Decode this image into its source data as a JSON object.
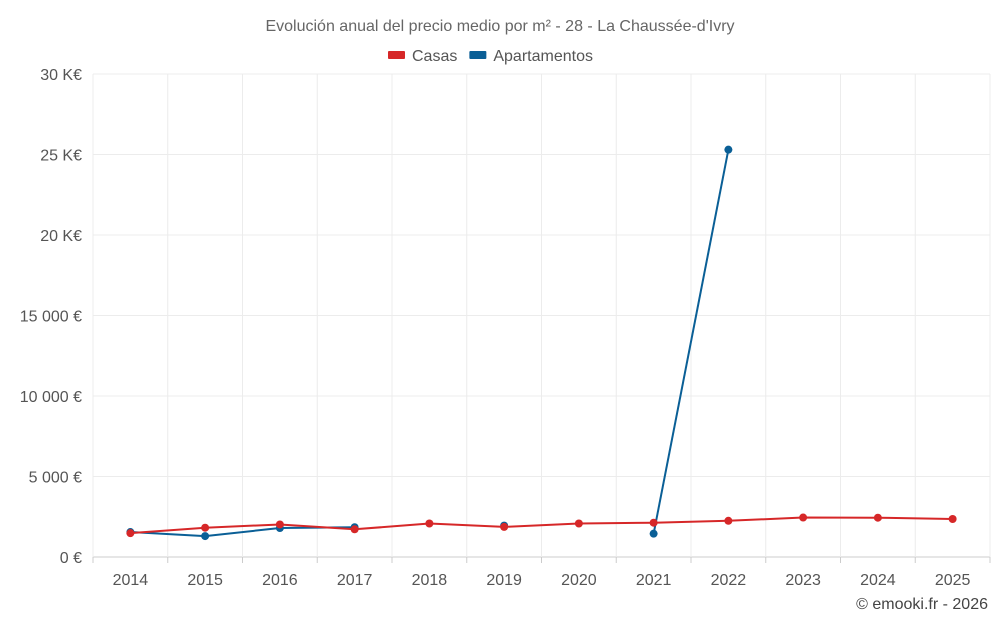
{
  "chart_data": {
    "type": "line",
    "title": "Evolución anual del precio medio por m² - 28 - La Chaussée-d'Ivry",
    "categories": [
      "2014",
      "2015",
      "2016",
      "2017",
      "2018",
      "2019",
      "2020",
      "2021",
      "2022",
      "2023",
      "2024",
      "2025"
    ],
    "ylim": [
      0,
      30000
    ],
    "yticks": [
      {
        "value": 0,
        "label": "0 €"
      },
      {
        "value": 5000,
        "label": "5 000 €"
      },
      {
        "value": 10000,
        "label": "10 000 €"
      },
      {
        "value": 15000,
        "label": "15 000 €"
      },
      {
        "value": 20000,
        "label": "20 K€"
      },
      {
        "value": 25000,
        "label": "25 K€"
      },
      {
        "value": 30000,
        "label": "30 K€"
      }
    ],
    "grid": true,
    "legend_position": "top-center",
    "series": [
      {
        "name": "Apartamentos",
        "color": "#0a5f96",
        "values": [
          1550,
          1300,
          1800,
          1850,
          null,
          1950,
          null,
          1450,
          25300,
          null,
          null,
          null
        ]
      },
      {
        "name": "Casas",
        "color": "#d62728",
        "values": [
          1480,
          1820,
          2020,
          1720,
          2080,
          1870,
          2080,
          2130,
          2250,
          2450,
          2440,
          2360
        ]
      }
    ],
    "credit": "© emooki.fr - 2026"
  }
}
